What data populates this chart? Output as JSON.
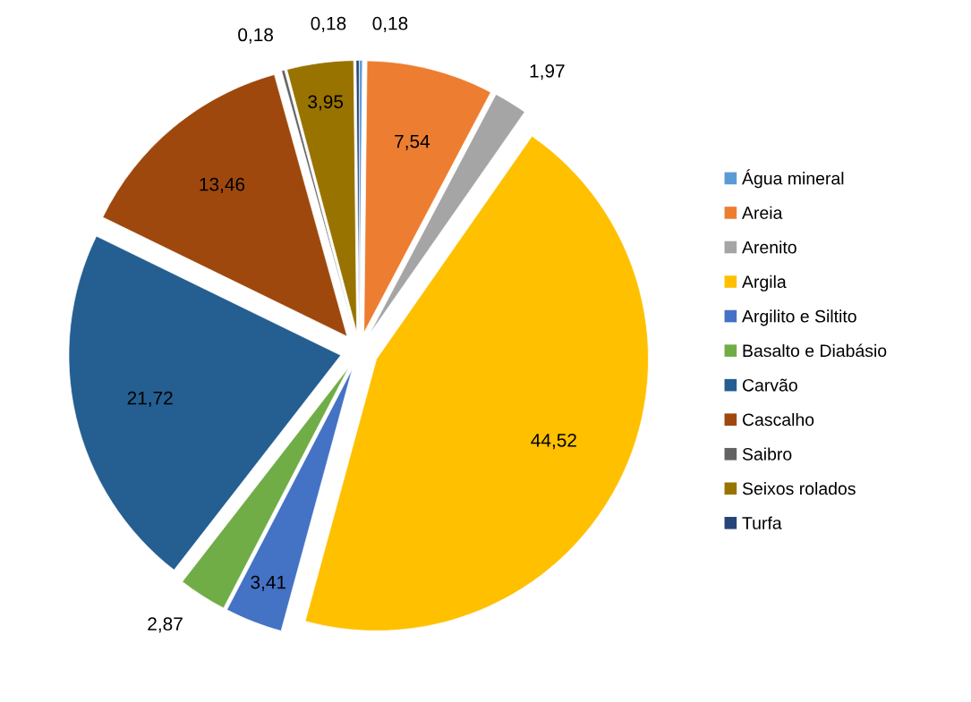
{
  "chart_data": {
    "type": "pie",
    "categories": [
      "Água mineral",
      "Areia",
      "Arenito",
      "Argila",
      "Argilito e Siltito",
      "Basalto e Diabásio",
      "Carvão",
      "Cascalho",
      "Saibro",
      "Seixos rolados",
      "Turfa"
    ],
    "values": [
      0.18,
      7.54,
      1.97,
      44.52,
      3.41,
      2.87,
      21.72,
      13.46,
      0.18,
      3.95,
      0.18
    ],
    "value_labels": [
      "0,18",
      "7,54",
      "1,97",
      "44,52",
      "3,41",
      "2,87",
      "21,72",
      "13,46",
      "0,18",
      "3,95",
      "0,18"
    ],
    "colors": [
      "#5b9bd5",
      "#ed7d31",
      "#a5a5a5",
      "#ffc000",
      "#4472c4",
      "#70ad47",
      "#255e91",
      "#9e480e",
      "#636363",
      "#997300",
      "#264478"
    ],
    "legend": "right"
  }
}
